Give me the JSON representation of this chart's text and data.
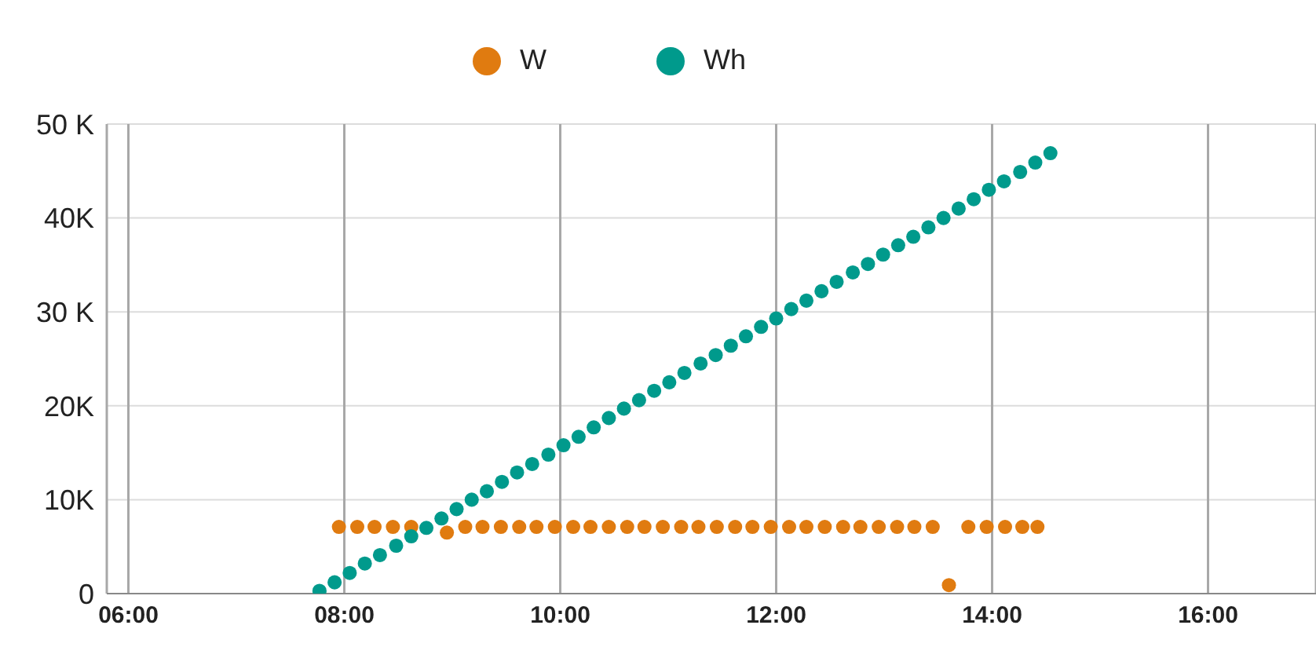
{
  "chart_data": {
    "type": "scatter",
    "xlim": [
      5.8,
      17
    ],
    "xticks": [
      {
        "value": 6,
        "label": "06:00"
      },
      {
        "value": 8,
        "label": "08:00"
      },
      {
        "value": 10,
        "label": "10:00"
      },
      {
        "value": 12,
        "label": "12:00"
      },
      {
        "value": 14,
        "label": "14:00"
      },
      {
        "value": 16,
        "label": "16:00"
      }
    ],
    "ylim": [
      0,
      50000
    ],
    "yticks": [
      {
        "value": 0,
        "label": "0"
      },
      {
        "value": 10000,
        "label": "10K"
      },
      {
        "value": 20000,
        "label": "20K"
      },
      {
        "value": 30000,
        "label": "30 K"
      },
      {
        "value": 40000,
        "label": "40K"
      },
      {
        "value": 50000,
        "label": "50 K"
      }
    ],
    "grid": true,
    "legend": "top",
    "marker": "circle",
    "series": [
      {
        "name": "W",
        "color": "#e07b10",
        "x": [
          7.95,
          8.12,
          8.28,
          8.45,
          8.62,
          8.95,
          9.12,
          9.28,
          9.45,
          9.62,
          9.78,
          9.95,
          10.12,
          10.28,
          10.45,
          10.62,
          10.78,
          10.95,
          11.12,
          11.28,
          11.45,
          11.62,
          11.78,
          11.95,
          12.12,
          12.28,
          12.45,
          12.62,
          12.78,
          12.95,
          13.12,
          13.28,
          13.45,
          13.6,
          13.78,
          13.95,
          14.12,
          14.28,
          14.42
        ],
        "values": [
          7100,
          7100,
          7100,
          7100,
          7100,
          6500,
          7100,
          7100,
          7100,
          7100,
          7100,
          7100,
          7100,
          7100,
          7100,
          7100,
          7100,
          7100,
          7100,
          7100,
          7100,
          7100,
          7100,
          7100,
          7100,
          7100,
          7100,
          7100,
          7100,
          7100,
          7100,
          7100,
          7100,
          900,
          7100,
          7100,
          7100,
          7100,
          7100
        ]
      },
      {
        "name": "Wh",
        "color": "#009a8c",
        "x": [
          7.77,
          7.91,
          8.05,
          8.19,
          8.33,
          8.48,
          8.62,
          8.76,
          8.9,
          9.04,
          9.18,
          9.32,
          9.46,
          9.6,
          9.74,
          9.89,
          10.03,
          10.17,
          10.31,
          10.45,
          10.59,
          10.73,
          10.87,
          11.01,
          11.15,
          11.3,
          11.44,
          11.58,
          11.72,
          11.86,
          12,
          12.14,
          12.28,
          12.42,
          12.56,
          12.71,
          12.85,
          12.99,
          13.13,
          13.27,
          13.41,
          13.55,
          13.69,
          13.83,
          13.97,
          14.11,
          14.26,
          14.4,
          14.54
        ],
        "values": [
          300,
          1200,
          2200,
          3200,
          4100,
          5100,
          6100,
          7000,
          8000,
          9000,
          10000,
          10900,
          11900,
          12900,
          13800,
          14800,
          15800,
          16700,
          17700,
          18700,
          19700,
          20600,
          21600,
          22500,
          23500,
          24500,
          25400,
          26400,
          27400,
          28400,
          29300,
          30300,
          31200,
          32200,
          33200,
          34200,
          35100,
          36100,
          37100,
          38000,
          39000,
          40000,
          41000,
          42000,
          43000,
          43900,
          44900,
          45900,
          46900
        ]
      }
    ]
  }
}
